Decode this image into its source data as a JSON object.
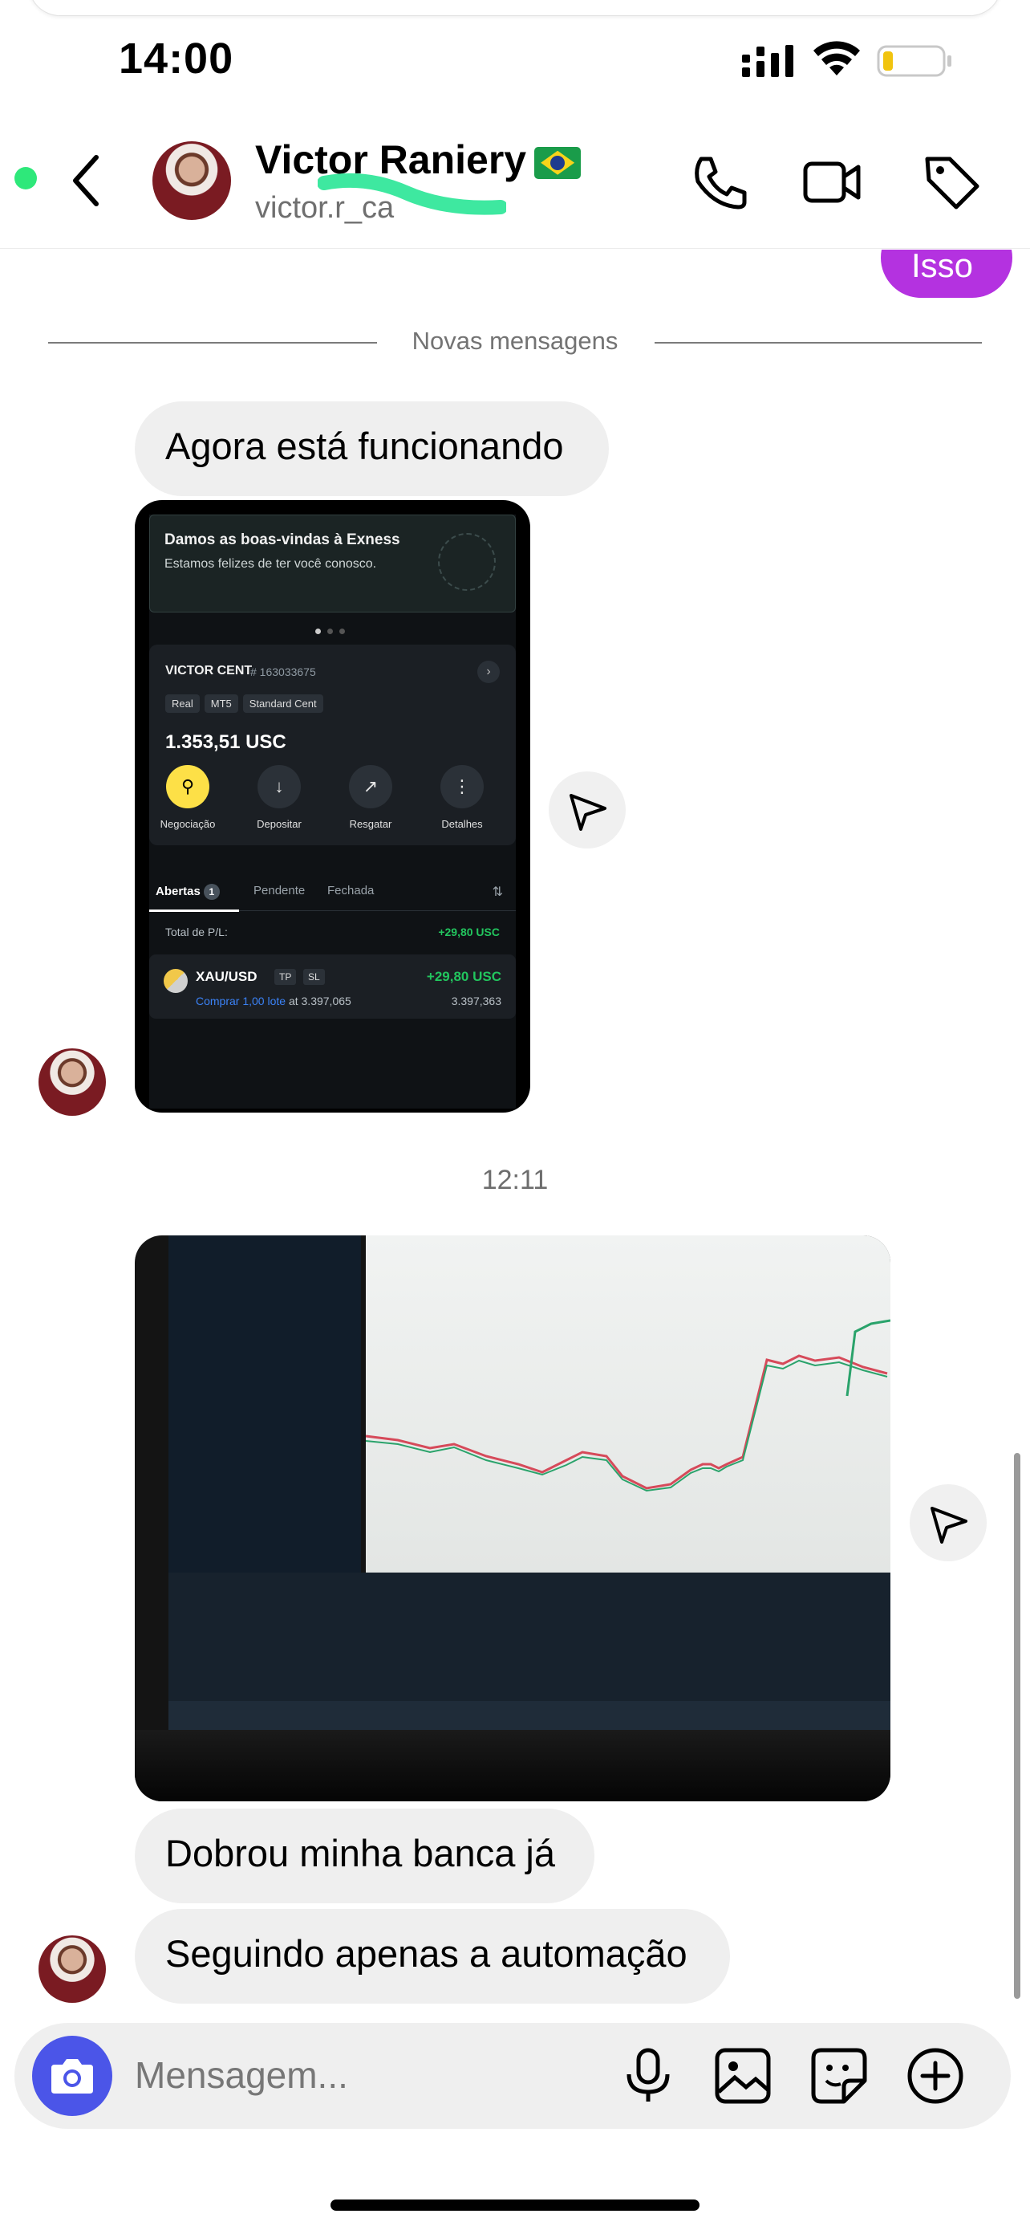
{
  "status_bar": {
    "time": "14:00"
  },
  "header": {
    "contact_name": "Victor Raniery",
    "username": "victor.r_ca"
  },
  "chat": {
    "previous_sent_message": "Isso",
    "divider_label": "Novas mensagens",
    "messages": [
      {
        "type": "text",
        "text": "Agora está funcionando"
      },
      {
        "type": "image",
        "description": "exness-app-screenshot"
      },
      {
        "type": "timestamp",
        "text": "12:11"
      },
      {
        "type": "image",
        "description": "trading-computer-photo"
      },
      {
        "type": "text",
        "text": "Dobrou minha banca já"
      },
      {
        "type": "text",
        "text": "Seguindo apenas a automação"
      }
    ]
  },
  "exness_screenshot": {
    "welcome_title": "Damos as boas-vindas à Exness",
    "welcome_subtitle": "Estamos felizes de ter você conosco.",
    "account_name": "VICTOR CENT",
    "account_number": "# 163033675",
    "tags": [
      "Real",
      "MT5",
      "Standard Cent"
    ],
    "balance": "1.353,51 USC",
    "actions": [
      "Negociação",
      "Depositar",
      "Resgatar",
      "Detalhes"
    ],
    "tabs": [
      "Abertas",
      "Pendente",
      "Fechada"
    ],
    "open_count": "1",
    "pl_label": "Total de P/L:",
    "pl_value": "+29,80 USC",
    "trade_symbol": "XAU/USD",
    "trade_tags": [
      "TP",
      "SL"
    ],
    "trade_pnl": "+29,80 USC",
    "trade_lot": "Comprar 1,00 lote",
    "trade_at": "at 3.397,065",
    "trade_price": "3.397,363"
  },
  "composer": {
    "placeholder": "Mensagem..."
  },
  "colors": {
    "sent_bubble": "#b432e0",
    "camera_button": "#4b55e8",
    "online_dot": "#2ee87a",
    "received_bubble": "#efefef"
  }
}
